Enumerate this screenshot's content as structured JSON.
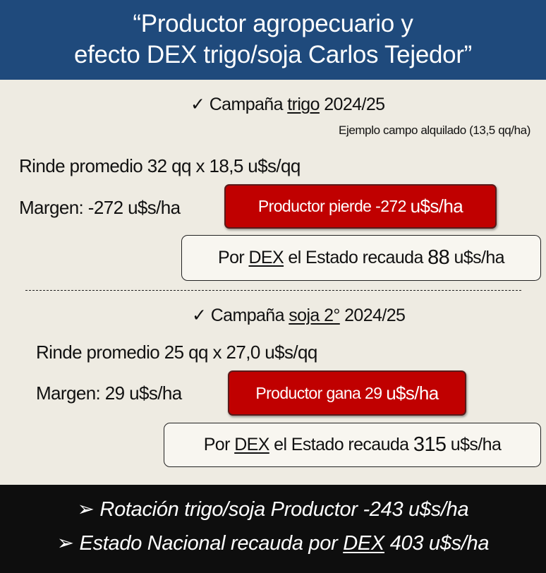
{
  "header": {
    "line1": "“Productor agropecuario y",
    "line2": "efecto DEX trigo/soja Carlos Tejedor”"
  },
  "trigo": {
    "check": "✓",
    "title_pre": "Campaña ",
    "title_crop": "trigo",
    "title_post": " 2024/25",
    "note": "Ejemplo campo alquilado (13,5 qq/ha)",
    "rinde": "Rinde promedio 32 qq x 18,5 u$s/qq",
    "margen": "Margen: -272 u$s/ha",
    "productor_pre": "Productor pierde -272 ",
    "productor_unit": "u$s/ha",
    "estado_pre": "Por ",
    "estado_dex": "DEX",
    "estado_mid": " el Estado recauda ",
    "estado_val": "88",
    "estado_unit": " u$s/ha"
  },
  "soja": {
    "check": "✓",
    "title_pre": "Campaña ",
    "title_crop": "soja 2°",
    "title_post": " 2024/25",
    "rinde": "Rinde promedio 25 qq x 27,0 u$s/qq",
    "margen": "Margen: 29 u$s/ha",
    "productor_pre": "Productor gana 29 ",
    "productor_unit": "u$s/ha",
    "estado_pre": "Por ",
    "estado_dex": "DEX",
    "estado_mid": " el Estado recauda ",
    "estado_val": "315",
    "estado_unit": " u$s/ha"
  },
  "footer": {
    "bullet": "➢",
    "line1": "Rotación trigo/soja Productor -243 u$s/ha",
    "line2_pre": "Estado Nacional recauda por ",
    "line2_dex": "DEX",
    "line2_post": " 403 u$s/ha"
  },
  "colors": {
    "header": "#1f4a7c",
    "alert": "#c00000",
    "footer": "#0e0e0e",
    "background": "#eeebe2"
  }
}
